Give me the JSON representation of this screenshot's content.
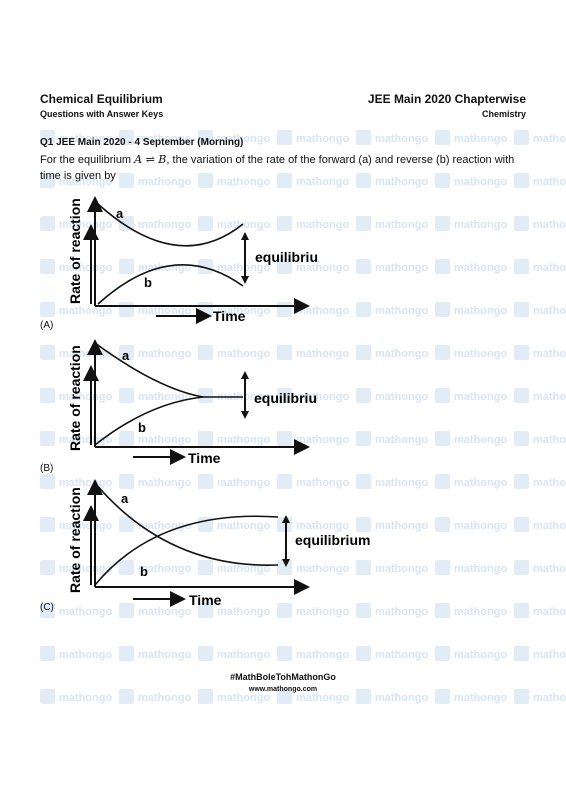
{
  "header": {
    "title": "Chemical Equilibrium",
    "subtitle": "Questions with Answer Keys",
    "right_title": "JEE Main 2020 Chapterwise",
    "right_subtitle": "Chemistry"
  },
  "question": {
    "heading": "Q1 JEE Main 2020 - 4 September (Morning)",
    "text_before": "For the equilibrium ",
    "equation": "A ⇌ B",
    "text_after": ", the variation of the rate of the forward (a) and reverse (b) reaction with time is given by"
  },
  "options": [
    {
      "label": "(A)",
      "ylabel": "Rate of reaction",
      "xlabel": "Time",
      "curve_a": "a",
      "curve_b": "b",
      "annotation": "equilibrium"
    },
    {
      "label": "(B)",
      "ylabel": "Rate of reaction",
      "xlabel": "Time",
      "curve_a": "a",
      "curve_b": "b",
      "annotation": "equilibrium"
    },
    {
      "label": "(C)",
      "ylabel": "Rate of reaction",
      "xlabel": "Time",
      "curve_a": "a",
      "curve_b": "b",
      "annotation": "equilibrium"
    }
  ],
  "watermark": {
    "text": "mathongo",
    "color": "#c9dcef"
  },
  "footer": {
    "hashtag": "#MathBoleTohMathonGo",
    "website": "www.mathongo.com"
  }
}
